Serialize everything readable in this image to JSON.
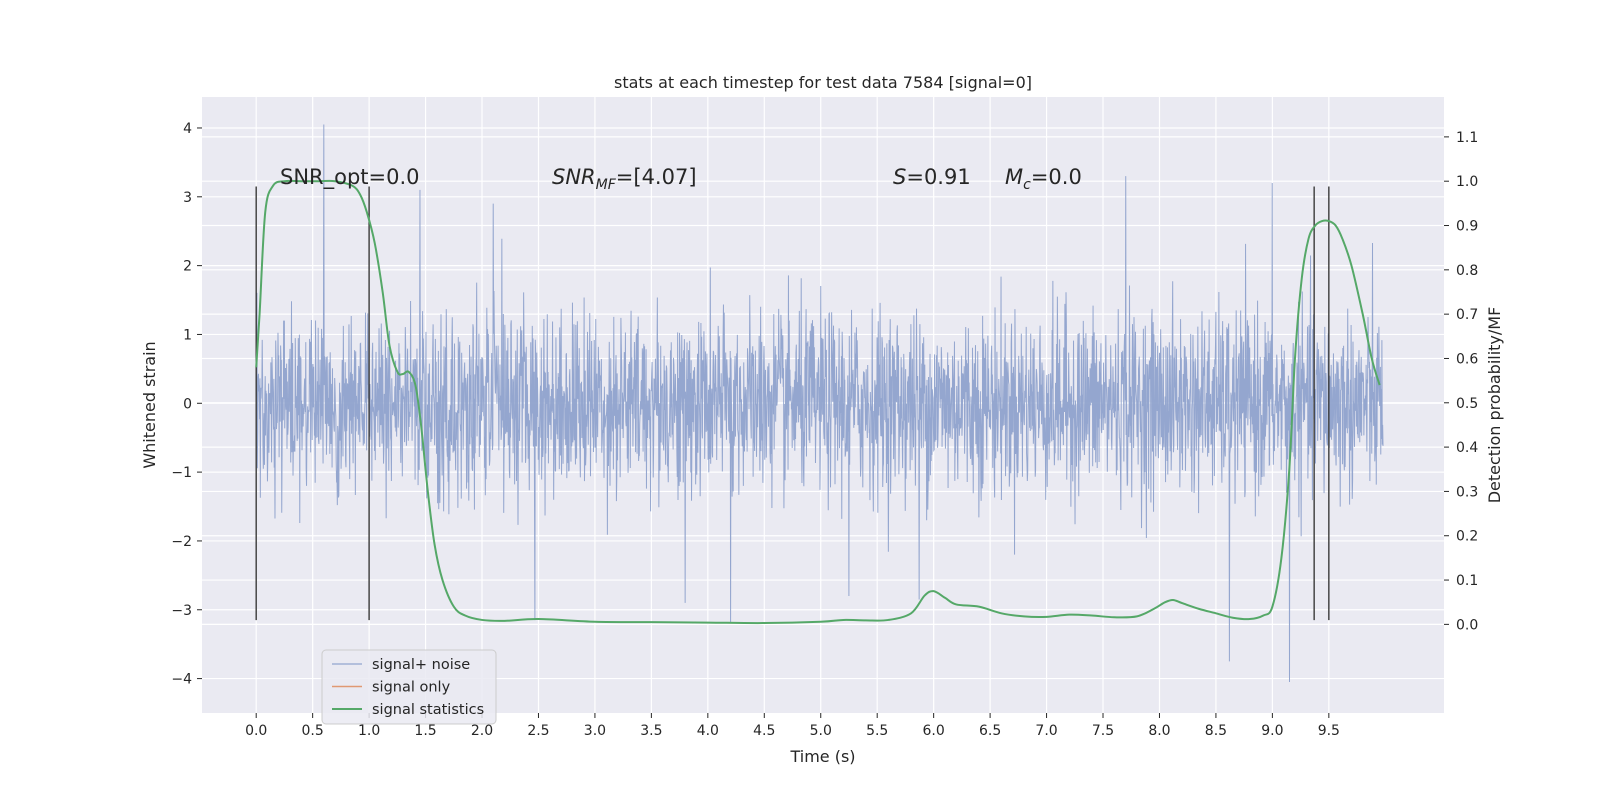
{
  "chart_data": {
    "type": "line",
    "title": "stats at each timestep for test data 7584 [signal=0]",
    "xlabel": "Time (s)",
    "ylabel_left": "Whitened strain",
    "ylabel_right": "Detection probability/MF",
    "xlim": [
      -0.48,
      10.52
    ],
    "ylim_left": [
      -4.5,
      4.45
    ],
    "ylim_right": [
      -0.2,
      1.19
    ],
    "x_ticks": [
      0.0,
      0.5,
      1.0,
      1.5,
      2.0,
      2.5,
      3.0,
      3.5,
      4.0,
      4.5,
      5.0,
      5.5,
      6.0,
      6.5,
      7.0,
      7.5,
      8.0,
      8.5,
      9.0,
      9.5
    ],
    "x_tick_labels": [
      "0.0",
      "0.5",
      "1.0",
      "1.5",
      "2.0",
      "2.5",
      "3.0",
      "3.5",
      "4.0",
      "4.5",
      "5.0",
      "5.5",
      "6.0",
      "6.5",
      "7.0",
      "7.5",
      "8.0",
      "8.5",
      "9.0",
      "9.5"
    ],
    "y_left_ticks": [
      4,
      3,
      2,
      1,
      0,
      -1,
      -2,
      -3,
      -4
    ],
    "y_left_tick_labels": [
      "4",
      "3",
      "2",
      "1",
      "0",
      "−1",
      "−2",
      "−3",
      "−4"
    ],
    "y_right_ticks": [
      1.1,
      1.0,
      0.9,
      0.8,
      0.7,
      0.6,
      0.5,
      0.4,
      0.3,
      0.2,
      0.1,
      0.0
    ],
    "y_right_tick_labels": [
      "1.1",
      "1.0",
      "0.9",
      "0.8",
      "0.7",
      "0.6",
      "0.5",
      "0.4",
      "0.3",
      "0.2",
      "0.1",
      "0.0"
    ],
    "grid": true,
    "legend_position": "lower-left",
    "series": [
      {
        "name": "signal+ noise",
        "kind": "noise",
        "color": "#8fa2cc",
        "x_range": [
          0.0,
          9.98
        ],
        "spread_2sigma": 1.3,
        "spikes": [
          [
            0.6,
            4.05
          ],
          [
            7.7,
            3.3
          ],
          [
            9.0,
            3.2
          ],
          [
            1.45,
            3.1
          ],
          [
            2.1,
            2.9
          ],
          [
            9.15,
            -4.05
          ],
          [
            8.62,
            -3.75
          ],
          [
            2.47,
            -3.15
          ],
          [
            4.2,
            -3.2
          ],
          [
            3.8,
            -2.9
          ],
          [
            5.25,
            -2.8
          ],
          [
            5.87,
            -2.85
          ]
        ]
      },
      {
        "name": "signal only",
        "kind": "line",
        "color": "#dd8452",
        "values": []
      },
      {
        "name": "signal statistics",
        "kind": "line",
        "axis": "right",
        "color": "#55a868",
        "x": [
          0.0,
          0.03,
          0.08,
          0.15,
          0.25,
          0.4,
          0.55,
          0.7,
          0.85,
          0.92,
          0.98,
          1.05,
          1.12,
          1.18,
          1.25,
          1.3,
          1.35,
          1.41,
          1.46,
          1.52,
          1.58,
          1.65,
          1.75,
          1.85,
          2.0,
          2.2,
          2.5,
          3.0,
          3.5,
          4.0,
          4.5,
          5.0,
          5.2,
          5.4,
          5.6,
          5.8,
          5.92,
          6.0,
          6.1,
          6.2,
          6.4,
          6.6,
          6.8,
          7.0,
          7.2,
          7.4,
          7.6,
          7.8,
          7.95,
          8.05,
          8.12,
          8.2,
          8.35,
          8.5,
          8.65,
          8.8,
          8.92,
          9.0,
          9.08,
          9.15,
          9.2,
          9.26,
          9.32,
          9.38,
          9.44,
          9.5,
          9.56,
          9.62,
          9.7,
          9.8,
          9.88,
          9.95
        ],
        "values": [
          0.58,
          0.7,
          0.93,
          0.99,
          1.0,
          1.0,
          1.0,
          1.0,
          0.99,
          0.97,
          0.93,
          0.86,
          0.75,
          0.63,
          0.57,
          0.565,
          0.57,
          0.54,
          0.45,
          0.3,
          0.18,
          0.1,
          0.04,
          0.02,
          0.01,
          0.008,
          0.012,
          0.006,
          0.005,
          0.004,
          0.003,
          0.006,
          0.01,
          0.009,
          0.01,
          0.025,
          0.065,
          0.075,
          0.06,
          0.045,
          0.04,
          0.025,
          0.018,
          0.017,
          0.022,
          0.02,
          0.016,
          0.018,
          0.035,
          0.05,
          0.055,
          0.048,
          0.035,
          0.025,
          0.015,
          0.012,
          0.02,
          0.04,
          0.15,
          0.35,
          0.6,
          0.78,
          0.87,
          0.9,
          0.91,
          0.91,
          0.9,
          0.87,
          0.81,
          0.7,
          0.6,
          0.54
        ]
      }
    ],
    "vertical_markers": [
      {
        "x": 0.0,
        "y": [
          -3.15,
          3.15
        ]
      },
      {
        "x": 1.0,
        "y": [
          -3.15,
          3.15
        ]
      },
      {
        "x": 9.37,
        "y": [
          -3.15,
          3.15
        ]
      },
      {
        "x": 9.5,
        "y": [
          -3.15,
          3.15
        ]
      }
    ],
    "annotations": [
      {
        "segments": [
          {
            "t": "SNR_opt=0.0"
          }
        ]
      },
      {
        "segments": [
          {
            "t": "SNR",
            "it": true
          },
          {
            "t": "MF",
            "it": true,
            "sub": true
          },
          {
            "t": "=[4.07]"
          }
        ]
      },
      {
        "segments": [
          {
            "t": "S",
            "it": true
          },
          {
            "t": "=0.91"
          }
        ]
      },
      {
        "segments": [
          {
            "t": "M",
            "it": true
          },
          {
            "t": "c",
            "it": true,
            "sub": true
          },
          {
            "t": "=0.0"
          }
        ]
      }
    ],
    "colors": {
      "plot_background": "#eaeaf2",
      "grid": "#ffffff",
      "marker_line": "#3a3a3a"
    }
  }
}
